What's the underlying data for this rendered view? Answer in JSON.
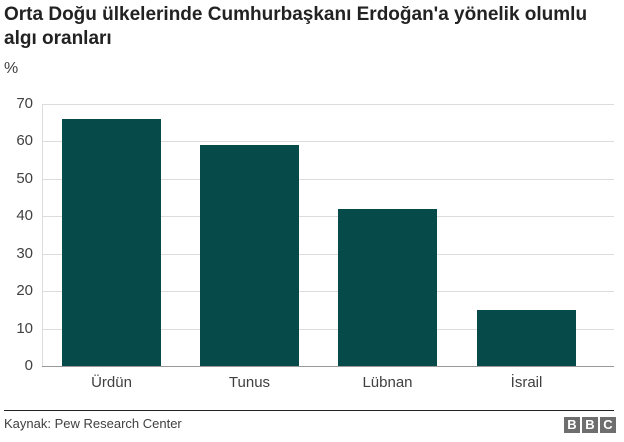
{
  "header": {
    "title": "Orta Doğu ülkelerinde Cumhurbaşkanı Erdoğan'a yönelik olumlu algı oranları",
    "unit": "%"
  },
  "footer": {
    "source": "Kaynak: Pew Research Center",
    "logo_letters": [
      "B",
      "B",
      "C"
    ]
  },
  "colors": {
    "bar": "#074a4a",
    "grid": "#dcdcdc",
    "text": "#404040"
  },
  "chart_data": {
    "type": "bar",
    "title": "Orta Doğu ülkelerinde Cumhurbaşkanı Erdoğan'a yönelik olumlu algı oranları",
    "xlabel": "",
    "ylabel": "%",
    "categories": [
      "Ürdün",
      "Tunus",
      "Lübnan",
      "İsrail"
    ],
    "values": [
      66,
      59,
      42,
      15
    ],
    "ylim": [
      0,
      70
    ],
    "yticks": [
      0,
      10,
      20,
      30,
      40,
      50,
      60,
      70
    ],
    "grid": true,
    "legend": null,
    "source": "Kaynak: Pew Research Center"
  }
}
